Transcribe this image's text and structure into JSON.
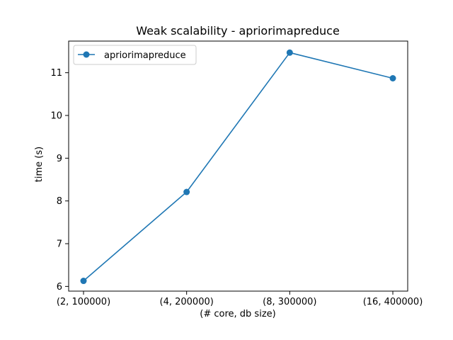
{
  "chart_data": {
    "type": "line",
    "title": "Weak scalability - apriorimapreduce",
    "xlabel": "(# core, db size)",
    "ylabel": "time (s)",
    "categories": [
      "(2, 100000)",
      "(4, 200000)",
      "(8, 300000)",
      "(16, 400000)"
    ],
    "series": [
      {
        "name": "apriorimapreduce",
        "values": [
          6.13,
          8.21,
          11.47,
          10.87
        ],
        "color": "#1f77b4",
        "marker": "circle"
      }
    ],
    "yticks": [
      "6",
      "7",
      "8",
      "9",
      "10",
      "11"
    ],
    "ylim": [
      5.89,
      11.74
    ],
    "grid": false,
    "legend_position": "top-left"
  }
}
